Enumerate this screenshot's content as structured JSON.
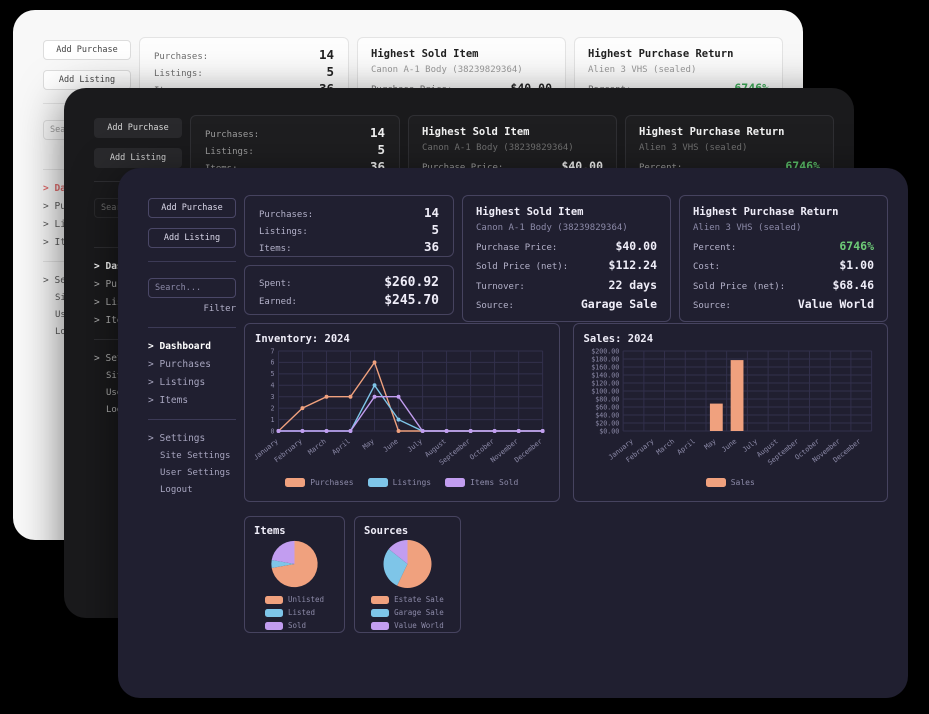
{
  "dashboard": {
    "sidebar": {
      "add_purchase_label": "Add Purchase",
      "add_listing_label": "Add Listing",
      "search_placeholder": "Search...",
      "filter_label": "Filter",
      "nav_prefix": ">",
      "nav": [
        {
          "label": "Dashboard",
          "active": true
        },
        {
          "label": "Purchases",
          "active": false
        },
        {
          "label": "Listings",
          "active": false
        },
        {
          "label": "Items",
          "active": false
        }
      ],
      "settings": {
        "label": "Settings",
        "children": [
          {
            "label": "Site Settings"
          },
          {
            "label": "User Settings"
          },
          {
            "label": "Logout"
          }
        ]
      }
    },
    "stats_card": {
      "rows": [
        {
          "label": "Purchases:",
          "value": "14"
        },
        {
          "label": "Listings:",
          "value": "5"
        },
        {
          "label": "Items:",
          "value": "36"
        }
      ]
    },
    "money_card": {
      "rows": [
        {
          "label": "Spent:",
          "value": "$260.92"
        },
        {
          "label": "Earned:",
          "value": "$245.70"
        }
      ]
    },
    "highest_sold": {
      "title": "Highest Sold Item",
      "subtitle": "Canon A-1 Body (38239829364)",
      "rows": [
        {
          "label": "Purchase Price:",
          "value": "$40.00"
        },
        {
          "label": "Sold Price (net):",
          "value": "$112.24"
        },
        {
          "label": "Turnover:",
          "value": "22 days"
        },
        {
          "label": "Source:",
          "value": "Garage Sale"
        }
      ]
    },
    "highest_return": {
      "title": "Highest Purchase Return",
      "subtitle": "Alien 3 VHS (sealed)",
      "rows": [
        {
          "label": "Percent:",
          "value": "6746%"
        },
        {
          "label": "Cost:",
          "value": "$1.00"
        },
        {
          "label": "Sold Price (net):",
          "value": "$68.46"
        },
        {
          "label": "Source:",
          "value": "Value World"
        }
      ]
    }
  },
  "chart_data": [
    {
      "type": "line",
      "title": "Inventory: 2024",
      "categories": [
        "January",
        "February",
        "March",
        "April",
        "May",
        "June",
        "July",
        "August",
        "September",
        "October",
        "November",
        "December"
      ],
      "series": [
        {
          "name": "Purchases",
          "color": "#f0a17e",
          "values": [
            0,
            2,
            3,
            3,
            6,
            0,
            0,
            0,
            0,
            0,
            0,
            0
          ]
        },
        {
          "name": "Listings",
          "color": "#7ec5e8",
          "values": [
            0,
            0,
            0,
            0,
            4,
            1,
            0,
            0,
            0,
            0,
            0,
            0
          ]
        },
        {
          "name": "Items Sold",
          "color": "#c29df0",
          "values": [
            0,
            0,
            0,
            0,
            3,
            3,
            0,
            0,
            0,
            0,
            0,
            0
          ]
        }
      ],
      "ylim": [
        0,
        7
      ],
      "yticks": [
        0,
        1,
        2,
        3,
        4,
        5,
        6,
        7
      ],
      "grid": true,
      "legend_position": "bottom"
    },
    {
      "type": "bar",
      "title": "Sales: 2024",
      "categories": [
        "January",
        "February",
        "March",
        "April",
        "May",
        "June",
        "July",
        "August",
        "September",
        "October",
        "November",
        "December"
      ],
      "series": [
        {
          "name": "Sales",
          "color": "#f0a17e",
          "values": [
            0,
            0,
            0,
            0,
            68.46,
            177.24,
            0,
            0,
            0,
            0,
            0,
            0
          ]
        }
      ],
      "ylim": [
        0,
        200
      ],
      "ytick_step": 20,
      "ytick_labels": [
        "$0.00",
        "$20.00",
        "$40.00",
        "$60.00",
        "$80.00",
        "$100.00",
        "$120.00",
        "$140.00",
        "$160.00",
        "$180.00",
        "$200.00"
      ],
      "grid": true,
      "legend_position": "bottom"
    },
    {
      "type": "pie",
      "title": "Items",
      "labels": [
        "Unlisted",
        "Listed",
        "Sold"
      ],
      "values": [
        26,
        2,
        8
      ],
      "colors": [
        "#f0a17e",
        "#7ec5e8",
        "#c29df0"
      ],
      "legend_position": "bottom"
    },
    {
      "type": "pie",
      "title": "Sources",
      "labels": [
        "Estate Sale",
        "Garage Sale",
        "Value World"
      ],
      "values": [
        8,
        4,
        2
      ],
      "colors": [
        "#f0a17e",
        "#7ec5e8",
        "#c29df0"
      ],
      "legend_position": "bottom"
    }
  ],
  "colors": {
    "peach": "#f0a17e",
    "blue": "#7ec5e8",
    "purple": "#c29df0",
    "green_highlight": "#6dcb77",
    "light_theme_active_nav": "#e06c6c"
  }
}
